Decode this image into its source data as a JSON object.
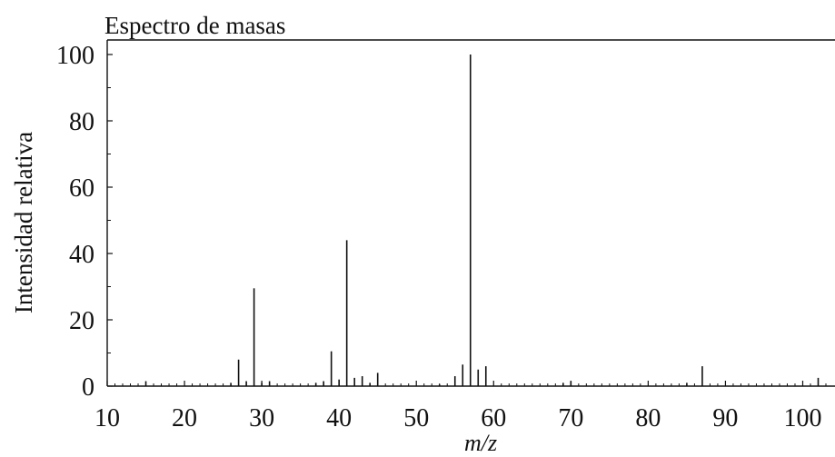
{
  "chart_data": {
    "type": "bar",
    "title": "Espectro de masas",
    "xlabel": "m/z",
    "ylabel": "Intensidad relativa",
    "xlim": [
      10,
      103
    ],
    "ylim": [
      0,
      100
    ],
    "x_ticks": [
      10,
      20,
      30,
      40,
      50,
      60,
      70,
      80,
      90,
      100
    ],
    "y_ticks": [
      0,
      20,
      40,
      60,
      80,
      100
    ],
    "grid": false,
    "series": [
      {
        "x": [
          15,
          26,
          27,
          28,
          29,
          30,
          31,
          37,
          38,
          39,
          40,
          41,
          42,
          43,
          44,
          45,
          53,
          55,
          56,
          57,
          58,
          59,
          69,
          70,
          85,
          87,
          102
        ],
        "values": [
          1.5,
          1,
          8,
          1.5,
          29.5,
          1,
          1.5,
          1,
          1.5,
          10.5,
          2,
          44,
          2.5,
          3,
          1,
          4,
          0.5,
          3,
          6.5,
          100,
          5,
          6,
          1,
          1.5,
          1,
          6,
          2.5
        ]
      }
    ]
  }
}
